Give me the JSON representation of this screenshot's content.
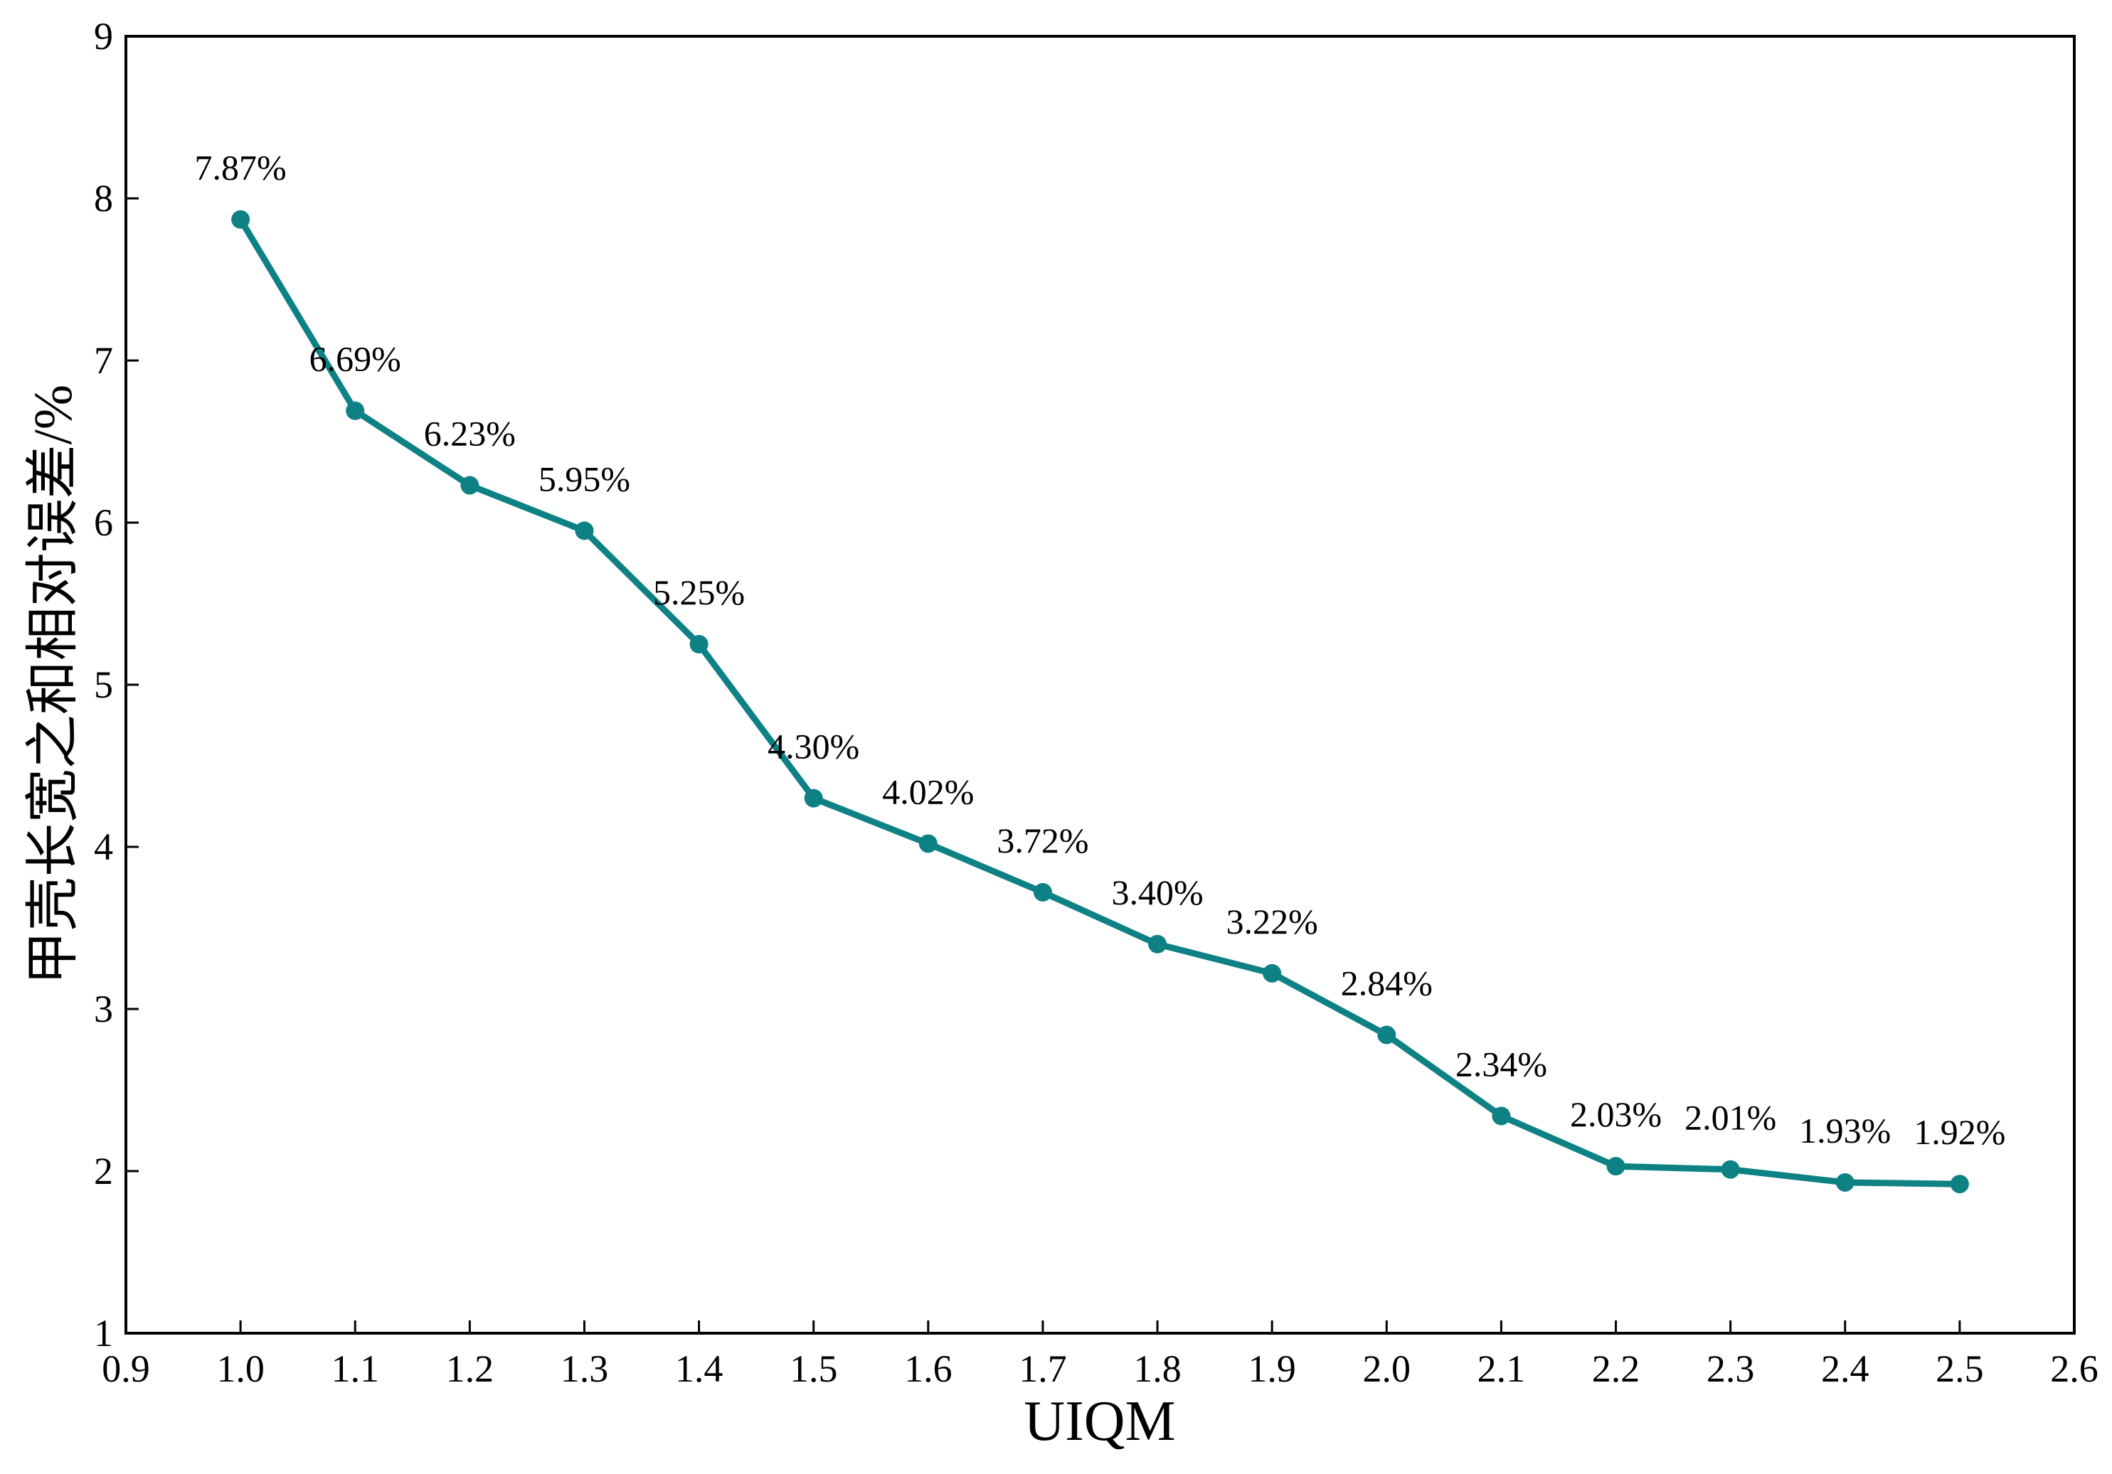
{
  "chart_data": {
    "type": "line",
    "title": "",
    "xlabel": "UIQM",
    "ylabel": "甲壳长宽之和相对误差/%",
    "xlim": [
      0.9,
      2.6
    ],
    "ylim": [
      1,
      9
    ],
    "xticks": [
      "0.9",
      "1.0",
      "1.1",
      "1.2",
      "1.3",
      "1.4",
      "1.5",
      "1.6",
      "1.7",
      "1.8",
      "1.9",
      "2.0",
      "2.1",
      "2.2",
      "2.3",
      "2.4",
      "2.5",
      "2.6"
    ],
    "yticks": [
      "1",
      "2",
      "3",
      "4",
      "5",
      "6",
      "7",
      "8",
      "9"
    ],
    "grid": false,
    "color": "#0e8185",
    "x": [
      1.0,
      1.1,
      1.2,
      1.3,
      1.4,
      1.5,
      1.6,
      1.7,
      1.8,
      1.9,
      2.0,
      2.1,
      2.2,
      2.3,
      2.4,
      2.5
    ],
    "y": [
      7.87,
      6.69,
      6.23,
      5.95,
      5.25,
      4.3,
      4.02,
      3.72,
      3.4,
      3.22,
      2.84,
      2.34,
      2.03,
      2.01,
      1.93,
      1.92
    ],
    "labels": [
      "7.87%",
      "6.69%",
      "6.23%",
      "5.95%",
      "5.25%",
      "4.30%",
      "4.02%",
      "3.72%",
      "3.40%",
      "3.22%",
      "2.84%",
      "2.34%",
      "2.03%",
      "2.01%",
      "1.93%",
      "1.92%"
    ]
  }
}
